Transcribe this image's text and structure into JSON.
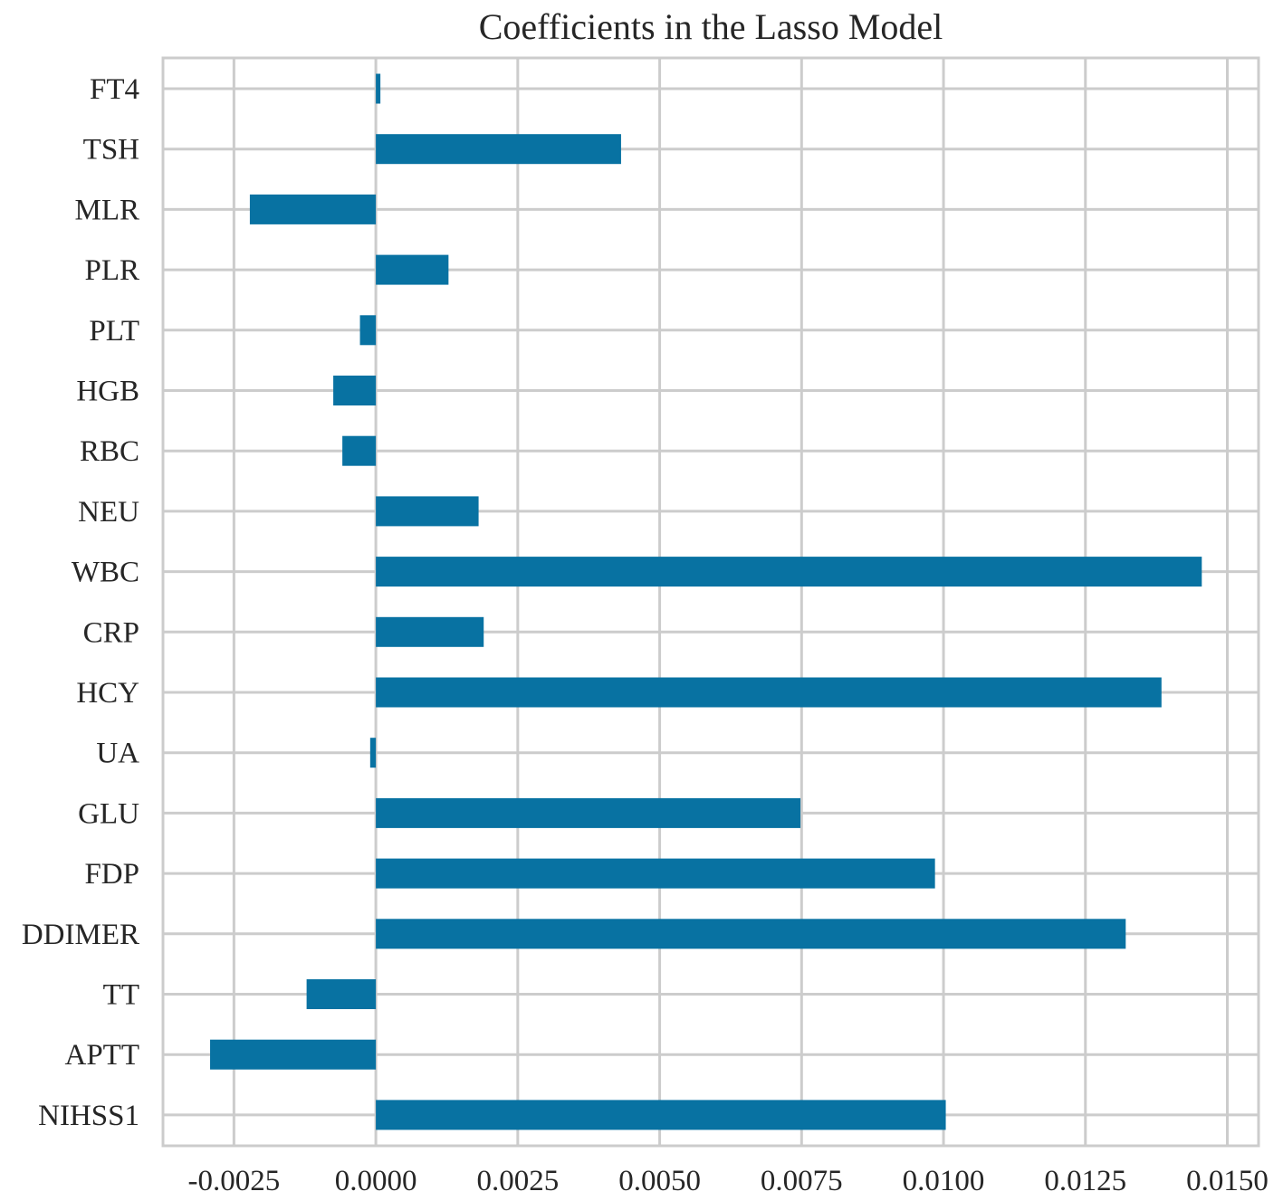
{
  "chart_data": {
    "type": "bar",
    "orientation": "horizontal",
    "title": "Coefficients in the Lasso Model",
    "xlabel": "",
    "ylabel": "",
    "categories": [
      "FT4",
      "TSH",
      "MLR",
      "PLR",
      "PLT",
      "HGB",
      "RBC",
      "NEU",
      "WBC",
      "CRP",
      "HCY",
      "UA",
      "GLU",
      "FDP",
      "DDIMER",
      "TT",
      "APTT",
      "NIHSS1"
    ],
    "values": [
      8e-05,
      0.00432,
      -0.00222,
      0.00128,
      -0.00028,
      -0.00075,
      -0.00059,
      0.00181,
      0.01455,
      0.0019,
      0.01384,
      -0.0001,
      0.00748,
      0.00985,
      0.01321,
      -0.00122,
      -0.00292,
      0.01004
    ],
    "xlim": [
      -0.00375,
      0.01555
    ],
    "xticks": [
      -0.0025,
      0.0,
      0.0025,
      0.005,
      0.0075,
      0.01,
      0.0125,
      0.015
    ],
    "xtick_labels": [
      "-0.0025",
      "0.0000",
      "0.0025",
      "0.0050",
      "0.0075",
      "0.0100",
      "0.0125",
      "0.0150"
    ],
    "grid": true,
    "legend": "none",
    "colors": {
      "bar": "#0872a2",
      "grid": "#cccccc",
      "frame": "#cccccc",
      "text": "#262626"
    }
  }
}
